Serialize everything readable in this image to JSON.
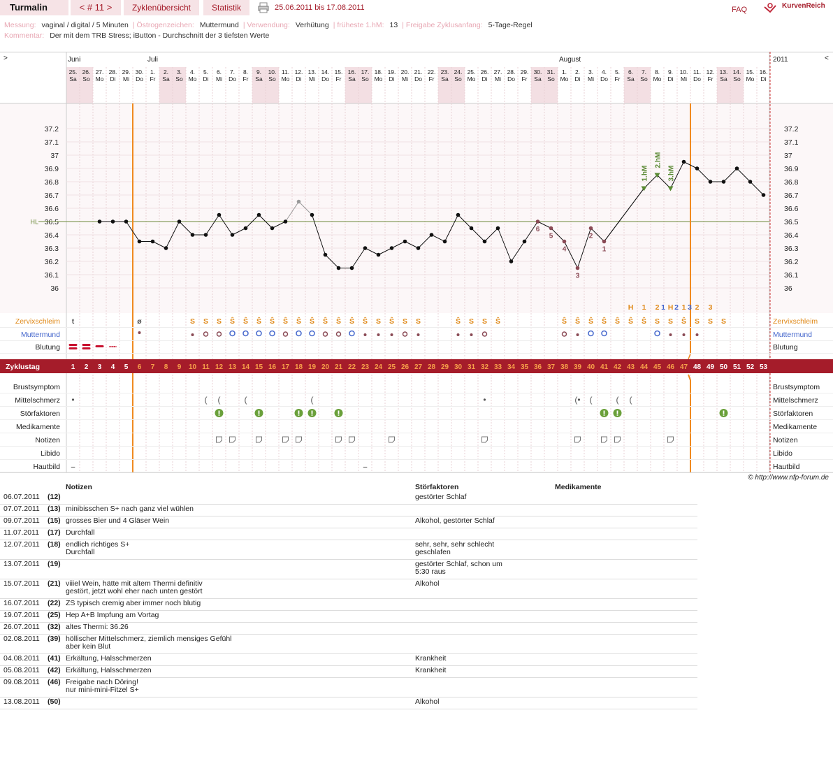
{
  "app": {
    "title": "Turmalin",
    "cycle_nav": "< # 11 >",
    "tab_overview": "Zyklenübersicht",
    "tab_stats": "Statistik",
    "date_range": "25.06.2011 bis 17.08.2011",
    "faq": "FAQ",
    "logo": "KurvenReich",
    "accent": "#a51c2a"
  },
  "info": {
    "l1": [
      {
        "k": "Messung:",
        "v": "vaginal / digital / 5 Minuten"
      },
      {
        "k": "Östrogenzeichen:",
        "v": "Muttermund"
      },
      {
        "k": "Verwendung:",
        "v": "Verhütung"
      },
      {
        "k": "früheste 1.hM:",
        "v": "13"
      },
      {
        "k": "Freigabe Zyklusanfang:",
        "v": "5-Tage-Regel"
      }
    ],
    "l2": {
      "k": "Kommentar:",
      "v": "Der mit dem TRB Stress; iButton - Durchschnitt der 3 tiefsten Werte"
    }
  },
  "chart_data": {
    "type": "line",
    "months": [
      {
        "name": "Juni",
        "day": 1
      },
      {
        "name": "Juli",
        "day": 7
      },
      {
        "name": "August",
        "day": 38
      }
    ],
    "year": "2011",
    "nav_left": ">",
    "nav_right": "<",
    "dates": [
      "25.",
      "26.",
      "27.",
      "28.",
      "29.",
      "30.",
      "1.",
      "2.",
      "3.",
      "4.",
      "5.",
      "6.",
      "7.",
      "8.",
      "9.",
      "10.",
      "11.",
      "12.",
      "13.",
      "14.",
      "15.",
      "16.",
      "17.",
      "18.",
      "19.",
      "20.",
      "21.",
      "22.",
      "23.",
      "24.",
      "25.",
      "26.",
      "27.",
      "28.",
      "29.",
      "30.",
      "31.",
      "1.",
      "2.",
      "3.",
      "4.",
      "5.",
      "6.",
      "7.",
      "8.",
      "9.",
      "10.",
      "11.",
      "12.",
      "13.",
      "14.",
      "15.",
      "16."
    ],
    "weekdays": [
      "Sa",
      "So",
      "Mo",
      "Di",
      "Mi",
      "Do",
      "Fr",
      "Sa",
      "So",
      "Mo",
      "Di",
      "Mi",
      "Do",
      "Fr",
      "Sa",
      "So",
      "Mo",
      "Di",
      "Mi",
      "Do",
      "Fr",
      "Sa",
      "So",
      "Mo",
      "Di",
      "Mi",
      "Do",
      "Fr",
      "Sa",
      "So",
      "Mo",
      "Di",
      "Mi",
      "Do",
      "Fr",
      "Sa",
      "So",
      "Mo",
      "Di",
      "Mi",
      "Do",
      "Fr",
      "Sa",
      "So",
      "Mo",
      "Di",
      "Mi",
      "Do",
      "Fr",
      "Sa",
      "So",
      "Mo",
      "Di"
    ],
    "weekend_days": [
      1,
      2,
      8,
      9,
      15,
      16,
      22,
      23,
      29,
      30,
      36,
      37,
      43,
      44,
      50,
      51
    ],
    "y_ticks": [
      "37.2",
      "37.1",
      "37",
      "36.9",
      "36.8",
      "36.7",
      "36.6",
      "36.5",
      "36.4",
      "36.3",
      "36.2",
      "36.1",
      "36"
    ],
    "ylim": [
      36.0,
      37.2
    ],
    "temperatures": [
      {
        "day": 3,
        "temp": 36.5
      },
      {
        "day": 4,
        "temp": 36.5
      },
      {
        "day": 5,
        "temp": 36.5
      },
      {
        "day": 6,
        "temp": 36.35
      },
      {
        "day": 7,
        "temp": 36.35
      },
      {
        "day": 8,
        "temp": 36.3
      },
      {
        "day": 9,
        "temp": 36.5
      },
      {
        "day": 10,
        "temp": 36.4
      },
      {
        "day": 11,
        "temp": 36.4
      },
      {
        "day": 12,
        "temp": 36.55
      },
      {
        "day": 13,
        "temp": 36.4
      },
      {
        "day": 14,
        "temp": 36.45
      },
      {
        "day": 15,
        "temp": 36.55
      },
      {
        "day": 16,
        "temp": 36.45
      },
      {
        "day": 17,
        "temp": 36.5
      },
      {
        "day": 18,
        "temp": 36.65,
        "excluded": true
      },
      {
        "day": 19,
        "temp": 36.55
      },
      {
        "day": 20,
        "temp": 36.25
      },
      {
        "day": 21,
        "temp": 36.15
      },
      {
        "day": 22,
        "temp": 36.15
      },
      {
        "day": 23,
        "temp": 36.3
      },
      {
        "day": 24,
        "temp": 36.25
      },
      {
        "day": 25,
        "temp": 36.3
      },
      {
        "day": 26,
        "temp": 36.35
      },
      {
        "day": 27,
        "temp": 36.3
      },
      {
        "day": 28,
        "temp": 36.4
      },
      {
        "day": 29,
        "temp": 36.35
      },
      {
        "day": 30,
        "temp": 36.55
      },
      {
        "day": 31,
        "temp": 36.45
      },
      {
        "day": 32,
        "temp": 36.35
      },
      {
        "day": 33,
        "temp": 36.45
      },
      {
        "day": 34,
        "temp": 36.2
      },
      {
        "day": 35,
        "temp": 36.35
      },
      {
        "day": 36,
        "temp": 36.5,
        "label": "6"
      },
      {
        "day": 37,
        "temp": 36.45,
        "label": "5"
      },
      {
        "day": 38,
        "temp": 36.35,
        "label": "4"
      },
      {
        "day": 39,
        "temp": 36.15,
        "label": "3"
      },
      {
        "day": 40,
        "temp": 36.45,
        "label": "2"
      },
      {
        "day": 41,
        "temp": 36.35,
        "label": "1"
      },
      {
        "day": 44,
        "temp": 36.75,
        "hm": "1.hM"
      },
      {
        "day": 45,
        "temp": 36.85,
        "hm": "2.hM"
      },
      {
        "day": 46,
        "temp": 36.75,
        "hm": "3.hM"
      },
      {
        "day": 47,
        "temp": 36.95
      },
      {
        "day": 48,
        "temp": 36.9
      },
      {
        "day": 49,
        "temp": 36.8
      },
      {
        "day": 50,
        "temp": 36.8
      },
      {
        "day": 51,
        "temp": 36.9
      },
      {
        "day": 52,
        "temp": 36.8
      },
      {
        "day": 53,
        "temp": 36.7
      }
    ],
    "hl_value": 36.5,
    "hl_label": "HL",
    "infertile_end_day": 5,
    "fertile_end_day": 47,
    "mucus_peak_labels": [
      {
        "day": 43,
        "t": "H"
      },
      {
        "day": 44,
        "t": "1"
      },
      {
        "day": 45,
        "t": "2"
      },
      {
        "day": 45.45,
        "t": "1",
        "c": "#4466cc"
      },
      {
        "day": 46,
        "t": "H"
      },
      {
        "day": 46.45,
        "t": "2",
        "c": "#4466cc"
      },
      {
        "day": 47,
        "t": "1"
      },
      {
        "day": 47.45,
        "t": "3",
        "c": "#4466cc"
      },
      {
        "day": 48,
        "t": "2"
      },
      {
        "day": 49,
        "t": "3"
      }
    ],
    "mucus": [
      "t",
      "",
      "",
      "",
      "",
      "ø",
      "",
      "",
      "",
      "S",
      "S",
      "S",
      "Ŝ",
      "Ŝ",
      "Ŝ",
      "Ŝ",
      "Ŝ",
      "Ŝ",
      "Ŝ",
      "Ŝ",
      "Ŝ",
      "Ŝ",
      "Ŝ",
      "S",
      "Ŝ",
      "S",
      "S",
      "",
      "",
      "Ŝ",
      "S",
      "S",
      "Ŝ",
      "",
      "",
      "",
      "",
      "Ŝ",
      "Ŝ",
      "Ŝ",
      "Ŝ",
      "Ŝ",
      "Ŝ",
      "Ŝ",
      "S",
      "S",
      "Ŝ",
      "S",
      "S",
      "S",
      "",
      "",
      ""
    ],
    "cervix": [
      "",
      "",
      "",
      "",
      "",
      "•",
      "",
      "",
      "",
      "s",
      "o",
      "o",
      "O",
      "O",
      "O",
      "O",
      "o",
      "O",
      "O",
      "o",
      "o",
      "O",
      "s",
      "s",
      "s",
      "o",
      "s",
      "",
      "",
      "s",
      "s",
      "o",
      "",
      "",
      "",
      "",
      "",
      "o",
      "s",
      "O",
      "O",
      "",
      "",
      "",
      "O",
      "s",
      "s",
      "s",
      "",
      "",
      "",
      "",
      ""
    ],
    "bleeding": [
      3,
      3,
      2,
      1,
      0,
      0,
      0,
      0,
      0,
      0,
      0,
      0,
      0,
      0,
      0,
      0,
      0,
      0,
      0,
      0,
      0,
      0,
      0,
      0,
      0,
      0,
      0,
      0,
      0,
      0,
      0,
      0,
      0,
      0,
      0,
      0,
      0,
      0,
      0,
      0,
      0,
      0,
      0,
      0,
      0,
      0,
      0,
      0,
      0,
      0,
      0,
      0,
      0
    ],
    "row_labels": {
      "zervix": "Zervixschleim",
      "muttermund": "Muttermund",
      "blutung": "Blutung",
      "zyklustag": "Zyklustag",
      "brust": "Brustsymptom",
      "mittel": "Mittelschmerz",
      "stoer": "Störfaktoren",
      "medi": "Medikamente",
      "notizen": "Notizen",
      "libido": "Libido",
      "haut": "Hautbild"
    },
    "mittelschmerz": [
      {
        "day": 1,
        "s": "•"
      },
      {
        "day": 11,
        "s": "("
      },
      {
        "day": 12,
        "s": "("
      },
      {
        "day": 14,
        "s": "("
      },
      {
        "day": 19,
        "s": "("
      },
      {
        "day": 32,
        "s": "•"
      },
      {
        "day": 39,
        "s": "(•"
      },
      {
        "day": 40,
        "s": "("
      },
      {
        "day": 42,
        "s": "("
      },
      {
        "day": 43,
        "s": "("
      }
    ],
    "stoerfaktoren_days": [
      12,
      15,
      18,
      19,
      21,
      41,
      42,
      50
    ],
    "notizen_days": [
      12,
      13,
      15,
      17,
      18,
      21,
      22,
      25,
      32,
      39,
      41,
      42,
      46
    ],
    "hautbild": [
      {
        "day": 1,
        "s": "–"
      },
      {
        "day": 23,
        "s": "–"
      }
    ]
  },
  "notes": {
    "headers": {
      "notizen": "Notizen",
      "stoer": "Störfaktoren",
      "medi": "Medikamente"
    },
    "rows": [
      {
        "date": "06.07.2011",
        "cd": "(12)",
        "note": [
          "",
          ""
        ],
        "stoer": [
          "gestörter Schlaf",
          ""
        ]
      },
      {
        "date": "07.07.2011",
        "cd": "(13)",
        "note": [
          "minibisschen S+ nach ganz viel wühlen",
          ""
        ],
        "stoer": [
          "",
          ""
        ]
      },
      {
        "date": "09.07.2011",
        "cd": "(15)",
        "note": [
          "grosses Bier und 4 Gläser Wein",
          ""
        ],
        "stoer": [
          "Alkohol, gestörter Schlaf",
          ""
        ]
      },
      {
        "date": "11.07.2011",
        "cd": "(17)",
        "note": [
          "Durchfall",
          ""
        ],
        "stoer": [
          "",
          ""
        ]
      },
      {
        "date": "12.07.2011",
        "cd": "(18)",
        "note": [
          "endlich richtiges S+",
          "Durchfall"
        ],
        "stoer": [
          "sehr, sehr, sehr schlecht",
          "geschlafen"
        ]
      },
      {
        "date": "13.07.2011",
        "cd": "(19)",
        "note": [
          "",
          ""
        ],
        "stoer": [
          "gestörter Schlaf, schon um",
          "5:30 raus"
        ]
      },
      {
        "date": "15.07.2011",
        "cd": "(21)",
        "note": [
          "viiiel Wein, hätte mit altem Thermi definitiv",
          "gestört, jetzt wohl eher nach unten gestört"
        ],
        "stoer": [
          "Alkohol",
          ""
        ]
      },
      {
        "date": "16.07.2011",
        "cd": "(22)",
        "note": [
          "ZS typisch cremig aber immer noch blutig",
          ""
        ],
        "stoer": [
          "",
          ""
        ]
      },
      {
        "date": "19.07.2011",
        "cd": "(25)",
        "note": [
          "Hep A+B Impfung am Vortag",
          ""
        ],
        "stoer": [
          "",
          ""
        ]
      },
      {
        "date": "26.07.2011",
        "cd": "(32)",
        "note": [
          "altes Thermi: 36.26",
          ""
        ],
        "stoer": [
          "",
          ""
        ]
      },
      {
        "date": "02.08.2011",
        "cd": "(39)",
        "note": [
          "höllischer Mittelschmerz, ziemlich mensiges Gefühl",
          "aber kein Blut"
        ],
        "stoer": [
          "",
          ""
        ]
      },
      {
        "date": "04.08.2011",
        "cd": "(41)",
        "note": [
          "Erkältung, Halsschmerzen",
          ""
        ],
        "stoer": [
          "Krankheit",
          ""
        ]
      },
      {
        "date": "05.08.2011",
        "cd": "(42)",
        "note": [
          "Erkältung, Halsschmerzen",
          ""
        ],
        "stoer": [
          "Krankheit",
          ""
        ]
      },
      {
        "date": "09.08.2011",
        "cd": "(46)",
        "note": [
          "Freigabe nach Döring!",
          "nur mini-mini-Fitzel S+"
        ],
        "stoer": [
          "",
          ""
        ]
      },
      {
        "date": "13.08.2011",
        "cd": "(50)",
        "note": [
          "",
          ""
        ],
        "stoer": [
          "Alkohol",
          ""
        ]
      }
    ]
  },
  "footer": {
    "copyright": "© http://www.nfp-forum.de"
  }
}
